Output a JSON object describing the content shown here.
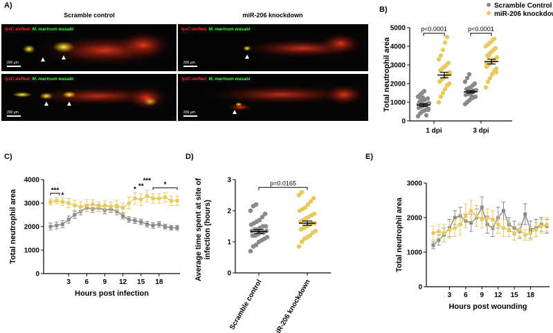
{
  "panels": {
    "a": "A)",
    "b": "B)",
    "c": "C)",
    "d": "D)",
    "e": "E)"
  },
  "microscopy": {
    "col_left": "Scramble control",
    "col_right": "miR-206 knockdown",
    "caption_red": "lyzC:dsRed;",
    "caption_green": "M. marinum wasabi",
    "scale_bar": "200 µm"
  },
  "colors": {
    "gray": "#8a8a8a",
    "yellow": "#e8c95c",
    "black": "#000000"
  },
  "chart_data": [
    {
      "panel": "B",
      "type": "scatter",
      "categories": [
        "1 dpi",
        "3 dpi"
      ],
      "ylabel": "Total neutrophil area",
      "ylim": [
        0,
        5000
      ],
      "yticks": [
        0,
        1000,
        2000,
        3000,
        4000,
        5000
      ],
      "legend": [
        "Scramble Control",
        "miR-206 knockdown"
      ],
      "legend_position": "top-right",
      "annotations": [
        "p<0.0001",
        "p<0.0001"
      ],
      "series": [
        {
          "name": "Scramble Control",
          "color": "#8a8a8a",
          "points": [
            [
              1,
              [
                250,
                400,
                500,
                550,
                600,
                650,
                700,
                750,
                800,
                850,
                900,
                950,
                1000,
                1050,
                1100,
                1150,
                1200,
                1300,
                1400,
                1500,
                1600,
                300,
                600,
                900,
                1150,
                1250
              ]
            ],
            [
              2,
              [
                900,
                1000,
                1100,
                1200,
                1250,
                1300,
                1400,
                1450,
                1500,
                1550,
                1600,
                1650,
                1700,
                1750,
                1800,
                1900,
                2000,
                2100,
                2300,
                2500,
                1350,
                1620
              ]
            ]
          ],
          "mean": [
            850,
            1560
          ],
          "sem": [
            80,
            70
          ]
        },
        {
          "name": "miR-206 knockdown",
          "color": "#e8c95c",
          "points": [
            [
              1,
              [
                1000,
                1300,
                1500,
                1700,
                1900,
                2000,
                2100,
                2200,
                2300,
                2400,
                2500,
                2600,
                2700,
                2800,
                2900,
                3000,
                3100,
                3300,
                3500,
                3800,
                4200,
                4500
              ]
            ],
            [
              2,
              [
                1800,
                2100,
                2300,
                2500,
                2700,
                2800,
                2900,
                3000,
                3100,
                3200,
                3300,
                3400,
                3500,
                3600,
                3700,
                3800,
                3900,
                4000,
                4100,
                4200,
                4300,
                4400,
                2600,
                3050,
                3450
              ]
            ]
          ],
          "mean": [
            2460,
            3180
          ],
          "sem": [
            150,
            130
          ]
        }
      ]
    },
    {
      "panel": "C",
      "type": "line",
      "xlabel": "Hours post infection",
      "ylabel": "Total neutrophil area",
      "xticks": [
        3,
        6,
        9,
        12,
        15,
        18
      ],
      "ylim": [
        0,
        4000
      ],
      "yticks": [
        0,
        1000,
        2000,
        3000,
        4000
      ],
      "annotations": [
        "***",
        "*",
        "*",
        "**",
        "***",
        "*"
      ],
      "x": [
        0,
        1,
        2,
        3,
        4,
        5,
        6,
        7,
        8,
        9,
        10,
        11,
        12,
        13,
        14,
        15,
        16,
        17,
        18,
        19,
        20,
        21
      ],
      "series": [
        {
          "name": "Scramble control",
          "color": "#8a8a8a",
          "values": [
            2000,
            2050,
            2100,
            2300,
            2500,
            2650,
            2800,
            2750,
            2800,
            2700,
            2750,
            2650,
            2450,
            2300,
            2250,
            2200,
            2100,
            2050,
            2100,
            2000,
            1950,
            1950
          ],
          "err": [
            150,
            150,
            150,
            150,
            150,
            150,
            150,
            150,
            150,
            150,
            150,
            150,
            120,
            120,
            120,
            120,
            120,
            120,
            120,
            100,
            100,
            100
          ]
        },
        {
          "name": "miR-206 knockdown",
          "color": "#e8c95c",
          "values": [
            3050,
            3100,
            3050,
            3000,
            2900,
            2850,
            2900,
            2950,
            2850,
            2900,
            2850,
            2900,
            2800,
            3000,
            3200,
            3150,
            3300,
            3200,
            3200,
            3250,
            3100,
            3100
          ],
          "err": [
            120,
            120,
            150,
            200,
            220,
            200,
            250,
            200,
            200,
            200,
            200,
            220,
            200,
            250,
            250,
            250,
            250,
            200,
            200,
            200,
            200,
            200
          ]
        }
      ]
    },
    {
      "panel": "D",
      "type": "scatter",
      "categories": [
        "Scramble control",
        "miR-206 knockdown"
      ],
      "ylabel": "Average time spent at site of infection (hours)",
      "ylim": [
        0,
        3
      ],
      "yticks": [
        0,
        1,
        2,
        3
      ],
      "annotations": [
        "p=0.0165"
      ],
      "series": [
        {
          "name": "Scramble control",
          "color": "#8a8a8a",
          "points": [
            0.7,
            0.85,
            0.9,
            1.0,
            1.05,
            1.1,
            1.15,
            1.2,
            1.2,
            1.25,
            1.3,
            1.3,
            1.35,
            1.35,
            1.4,
            1.4,
            1.45,
            1.5,
            1.5,
            1.55,
            1.6,
            1.65,
            1.7,
            1.8,
            1.9,
            2.0,
            2.15,
            2.2
          ],
          "mean": 1.33,
          "sem": 0.06
        },
        {
          "name": "miR-206 knockdown",
          "color": "#e8c95c",
          "points": [
            0.85,
            1.0,
            1.1,
            1.15,
            1.2,
            1.3,
            1.35,
            1.4,
            1.45,
            1.5,
            1.55,
            1.6,
            1.6,
            1.65,
            1.7,
            1.75,
            1.8,
            1.85,
            1.9,
            2.0,
            2.05,
            2.1,
            2.2,
            2.3,
            2.4,
            2.5,
            2.6
          ],
          "mean": 1.6,
          "sem": 0.07
        }
      ]
    },
    {
      "panel": "E",
      "type": "line",
      "xlabel": "Hours post wounding",
      "ylabel": "Total neutrophil area",
      "xticks": [
        3,
        6,
        9,
        12,
        15,
        18
      ],
      "ylim": [
        0,
        3000
      ],
      "yticks": [
        0,
        1000,
        2000,
        3000
      ],
      "x": [
        0,
        1,
        2,
        3,
        4,
        5,
        6,
        7,
        8,
        9,
        10,
        11,
        12,
        13,
        14,
        15,
        16,
        17,
        18,
        19,
        20,
        21
      ],
      "series": [
        {
          "name": "Scramble control",
          "color": "#8a8a8a",
          "values": [
            1200,
            1350,
            1500,
            1700,
            2000,
            2050,
            1900,
            1850,
            2000,
            2300,
            1800,
            1700,
            2000,
            2200,
            1800,
            1700,
            1600,
            2100,
            1650,
            1700,
            1800,
            1750
          ],
          "err": [
            100,
            150,
            200,
            250,
            200,
            250,
            200,
            250,
            250,
            300,
            250,
            250,
            300,
            250,
            200,
            200,
            200,
            300,
            250,
            250,
            200,
            200
          ]
        },
        {
          "name": "miR-206 knockdown",
          "color": "#e8c95c",
          "values": [
            1550,
            1600,
            1550,
            1650,
            1700,
            1800,
            2050,
            2200,
            2050,
            1950,
            2000,
            1950,
            1800,
            1700,
            1650,
            1550,
            1650,
            1500,
            1550,
            1650,
            1750,
            1800
          ],
          "err": [
            200,
            200,
            250,
            250,
            250,
            300,
            350,
            300,
            300,
            250,
            250,
            250,
            250,
            250,
            200,
            200,
            200,
            150,
            200,
            200,
            200,
            200
          ]
        }
      ]
    }
  ]
}
